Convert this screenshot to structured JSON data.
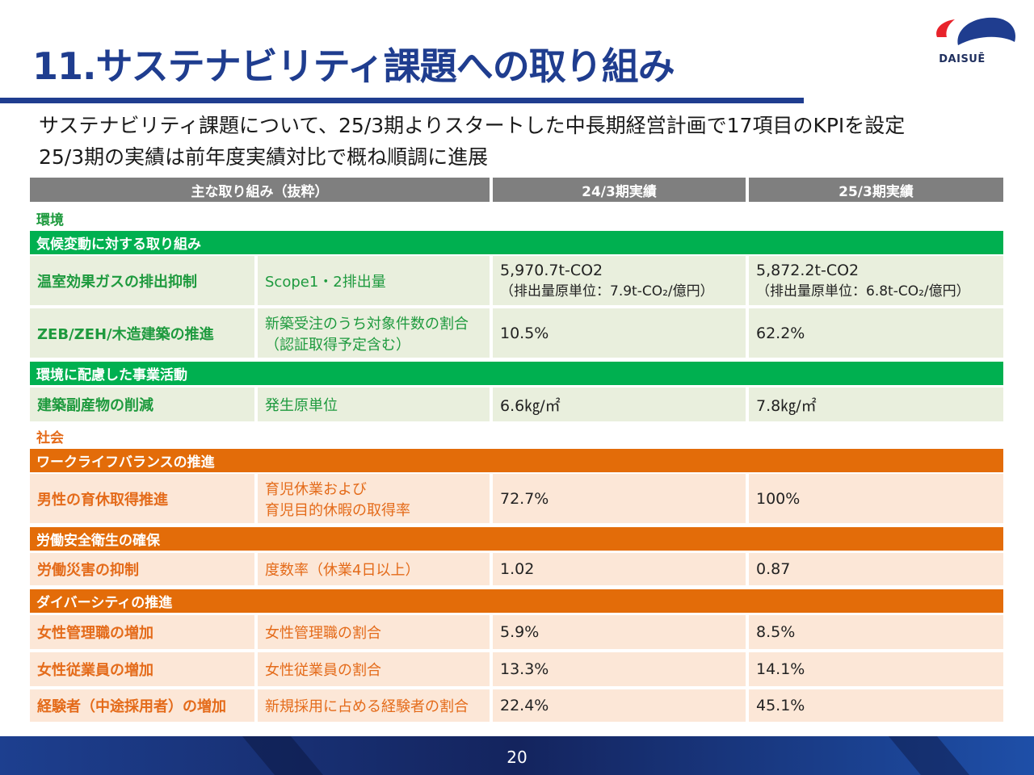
{
  "header": {
    "title": "11.サステナビリティ課題への取り組み",
    "logo_text": "DAISUĒ"
  },
  "summary": {
    "line1": "サステナビリティ課題について、25/3期よりスタートした中長期経営計画で17項目のKPIを設定",
    "line2": "25/3期の実績は前年度実績対比で概ね順調に進展"
  },
  "colors": {
    "brand_blue": "#1f3d8f",
    "environment_green": "#00b050",
    "social_orange": "#e36c09",
    "header_gray": "#7f7f7f"
  },
  "table": {
    "headers": [
      "主な取り組み（抜粋）",
      "24/3期実績",
      "25/3期実績"
    ],
    "environment": {
      "label": "環境",
      "climate": {
        "label": "気候変動に対する取り組み",
        "rows": [
          {
            "item": "温室効果ガスの排出抑制",
            "kpi": "Scope1・2排出量",
            "fy24": "5,970.7t-CO2",
            "fy24_note": "（排出量原単位：7.9t-CO₂/億円）",
            "fy25": "5,872.2t-CO2",
            "fy25_note": "（排出量原単位：6.8t-CO₂/億円）"
          },
          {
            "item": "ZEB/ZEH/木造建築の推進",
            "kpi": "新築受注のうち対象件数の割合",
            "kpi_note": "（認証取得予定含む）",
            "fy24": "10.5%",
            "fy25": "62.2%"
          }
        ]
      },
      "business": {
        "label": "環境に配慮した事業活動",
        "rows": [
          {
            "item": "建築副産物の削減",
            "kpi": "発生原単位",
            "fy24": "6.6㎏/㎡",
            "fy25": "7.8㎏/㎡"
          }
        ]
      }
    },
    "social": {
      "label": "社会",
      "work_life": {
        "label": "ワークライフバランスの推進",
        "rows": [
          {
            "item": "男性の育休取得推進",
            "kpi": "育児休業および",
            "kpi_note": "育児目的休暇の取得率",
            "fy24": "72.7%",
            "fy25": "100%"
          }
        ]
      },
      "safety": {
        "label": "労働安全衛生の確保",
        "rows": [
          {
            "item": "労働災害の抑制",
            "kpi": "度数率（休業4日以上）",
            "fy24": "1.02",
            "fy25": "0.87"
          }
        ]
      },
      "diversity": {
        "label": "ダイバーシティの推進",
        "rows": [
          {
            "item": "女性管理職の増加",
            "kpi": "女性管理職の割合",
            "fy24": "5.9%",
            "fy25": "8.5%"
          },
          {
            "item": "女性従業員の増加",
            "kpi": "女性従業員の割合",
            "fy24": "13.3%",
            "fy25": "14.1%"
          },
          {
            "item": "経験者（中途採用者）の増加",
            "kpi": "新規採用に占める経験者の割合",
            "fy24": "22.4%",
            "fy25": "45.1%"
          }
        ]
      }
    }
  },
  "footer": {
    "page_number": "20"
  }
}
